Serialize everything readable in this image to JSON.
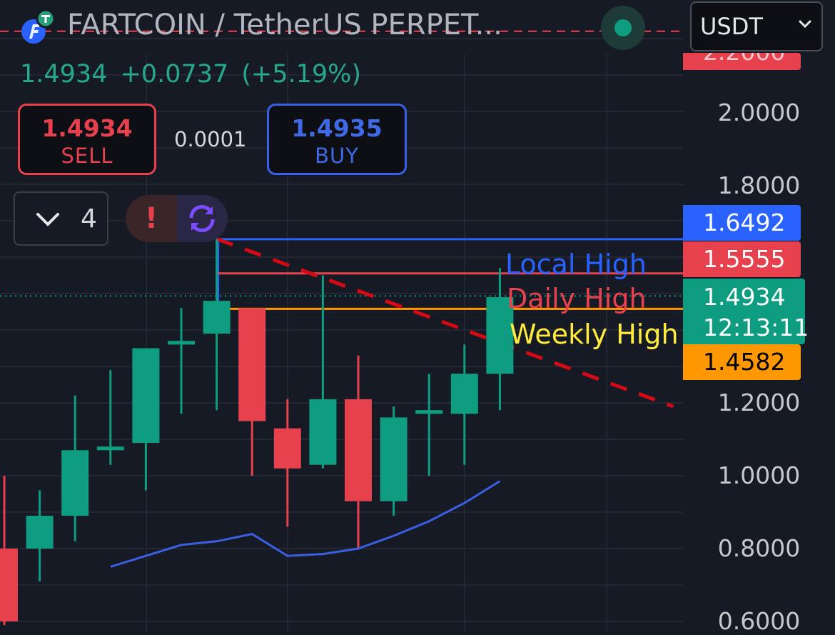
{
  "header": {
    "symbol": "FARTCOIN / TetherUS PERPET...",
    "currency": "USDT",
    "price": "1.4934",
    "change": "+0.0737",
    "change_pct": "(+5.19%)"
  },
  "trade": {
    "sell_price": "1.4934",
    "sell_label": "SELL",
    "spread": "0.0001",
    "buy_price": "1.4935",
    "buy_label": "BUY"
  },
  "indicators_count": "4",
  "alert_glyph": "!",
  "colors": {
    "background": "#161a25",
    "up": "#0f9d82",
    "down": "#e8414e",
    "blue": "#2962ff",
    "orange": "#ff9800",
    "yellow": "#ffeb3b",
    "trend": "#d60a14",
    "ma": "#3b5fe0"
  },
  "icons": [
    "tether-icon",
    "fartcoin-icon",
    "chevron-down-icon",
    "alert-icon",
    "sync-icon"
  ],
  "chart_data": {
    "type": "candlestick",
    "yaxis": {
      "ticks": [
        "2.0000",
        "1.8000",
        "1.2000",
        "1.0000",
        "0.8000",
        "0.6000"
      ],
      "tick_values": [
        2.0,
        1.8,
        1.2,
        1.0,
        0.8,
        0.6
      ],
      "partial_top_label": "2.2000",
      "grid": true
    },
    "candles": [
      {
        "open": 0.8,
        "high": 1.0,
        "low": 0.59,
        "close": 0.6
      },
      {
        "open": 0.8,
        "high": 0.96,
        "low": 0.71,
        "close": 0.89
      },
      {
        "open": 0.89,
        "high": 1.22,
        "low": 0.82,
        "close": 1.07
      },
      {
        "open": 1.07,
        "high": 1.29,
        "low": 1.03,
        "close": 1.08
      },
      {
        "open": 1.09,
        "high": 1.35,
        "low": 0.96,
        "close": 1.35
      },
      {
        "open": 1.36,
        "high": 1.46,
        "low": 1.17,
        "close": 1.37
      },
      {
        "open": 1.39,
        "high": 1.65,
        "low": 1.18,
        "close": 1.48
      },
      {
        "open": 1.46,
        "high": 1.46,
        "low": 1.0,
        "close": 1.15
      },
      {
        "open": 1.13,
        "high": 1.21,
        "low": 0.86,
        "close": 1.02
      },
      {
        "open": 1.03,
        "high": 1.55,
        "low": 1.02,
        "close": 1.21
      },
      {
        "open": 1.21,
        "high": 1.33,
        "low": 0.8,
        "close": 0.93
      },
      {
        "open": 0.93,
        "high": 1.19,
        "low": 0.89,
        "close": 1.16
      },
      {
        "open": 1.17,
        "high": 1.28,
        "low": 1.0,
        "close": 1.18
      },
      {
        "open": 1.17,
        "high": 1.36,
        "low": 1.03,
        "close": 1.28
      },
      {
        "open": 1.28,
        "high": 1.57,
        "low": 1.18,
        "close": 1.49
      }
    ],
    "moving_average": [
      {
        "i": 3,
        "v": 0.75
      },
      {
        "i": 4,
        "v": 0.78
      },
      {
        "i": 5,
        "v": 0.81
      },
      {
        "i": 6,
        "v": 0.82
      },
      {
        "i": 7,
        "v": 0.84
      },
      {
        "i": 8,
        "v": 0.78
      },
      {
        "i": 9,
        "v": 0.785
      },
      {
        "i": 10,
        "v": 0.8
      },
      {
        "i": 11,
        "v": 0.835
      },
      {
        "i": 12,
        "v": 0.875
      },
      {
        "i": 13,
        "v": 0.925
      },
      {
        "i": 14,
        "v": 0.985
      }
    ],
    "levels": [
      {
        "name": "Local High",
        "value": 1.6492,
        "label": "1.6492",
        "color": "#2962ff"
      },
      {
        "name": "Daily High",
        "value": 1.5555,
        "label": "1.5555",
        "color": "#e8414e"
      },
      {
        "name": "Weekly High",
        "value": 1.4582,
        "label": "1.4582",
        "color": "#ff9800"
      }
    ],
    "current_price": {
      "value": 1.4934,
      "label": "1.4934",
      "countdown": "12:13:11"
    },
    "trendline": {
      "from": {
        "i": 6,
        "v": 1.65
      },
      "to": {
        "i": 18.9,
        "v": 1.19
      }
    },
    "top_dashed_line": 2.22
  }
}
